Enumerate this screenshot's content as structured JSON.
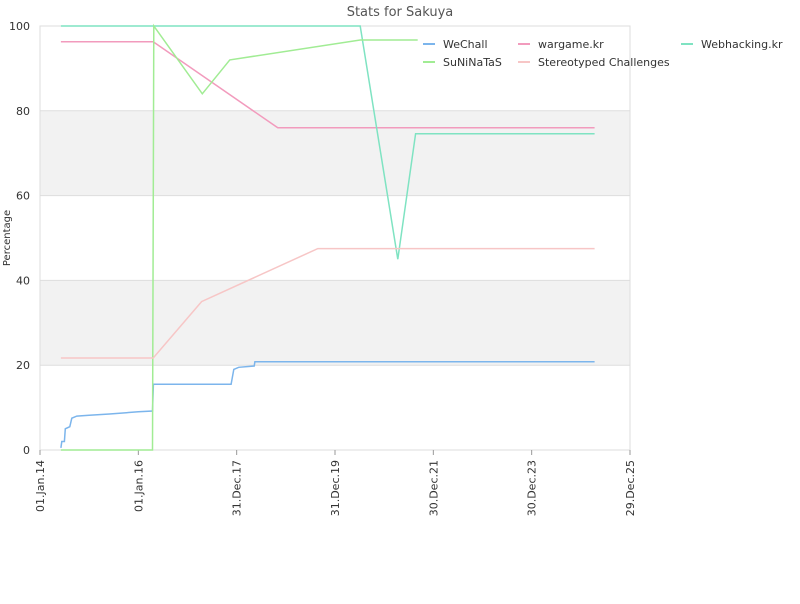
{
  "chart_data": {
    "type": "line",
    "title": "Stats for Sakuya",
    "y_label": "Percentage",
    "xlim": [
      "2014-01-01",
      "2025-12-29"
    ],
    "xticks": [
      {
        "value": "2014-01-01",
        "label": "01.Jan.14"
      },
      {
        "value": "2016-01-01",
        "label": "01.Jan.16"
      },
      {
        "value": "2017-12-31",
        "label": "31.Dec.17"
      },
      {
        "value": "2019-12-31",
        "label": "31.Dec.19"
      },
      {
        "value": "2021-12-30",
        "label": "30.Dec.21"
      },
      {
        "value": "2023-12-30",
        "label": "30.Dec.23"
      },
      {
        "value": "2025-12-29",
        "label": "29.Dec.25"
      }
    ],
    "ylim": [
      0,
      100
    ],
    "yticks": [
      0,
      20,
      40,
      60,
      80,
      100
    ],
    "grid": true,
    "legend": "top-right",
    "series": [
      {
        "name": "WeChall",
        "color": "#7cb5ec",
        "x": [
          "2014-06-05",
          "2014-06-12",
          "2014-07-01",
          "2014-07-08",
          "2014-08-10",
          "2014-08-25",
          "2014-10-01",
          "2015-01-01",
          "2015-06-01",
          "2016-01-01",
          "2016-04-15",
          "2016-04-22",
          "2017-11-20",
          "2017-12-10",
          "2018-01-15",
          "2018-05-10",
          "2018-05-15",
          "2025-04-10"
        ],
        "values": [
          0.5,
          2,
          2,
          5,
          5.5,
          7.5,
          8,
          8.2,
          8.5,
          9,
          9.2,
          15.5,
          15.5,
          19,
          19.5,
          19.8,
          20.8,
          20.8
        ]
      },
      {
        "name": "wargame.kr",
        "color": "#f29bbd",
        "x": [
          "2014-06-05",
          "2016-04-20",
          "2018-11-01",
          "2025-04-10"
        ],
        "values": [
          96.3,
          96.3,
          76,
          76
        ]
      },
      {
        "name": "Webhacking.kr",
        "color": "#7fe3c2",
        "x": [
          "2014-06-05",
          "2020-07-05",
          "2021-04-10",
          "2021-08-20",
          "2025-04-10"
        ],
        "values": [
          100,
          100,
          45,
          74.6,
          74.6
        ]
      },
      {
        "name": "SuNiNaTaS",
        "color": "#a1ec94",
        "x": [
          "2014-06-05",
          "2016-04-15",
          "2016-04-25",
          "2017-04-20",
          "2017-11-10",
          "2020-07-05",
          "2021-09-05"
        ],
        "values": [
          0,
          0,
          100,
          84,
          92,
          96.7,
          96.7
        ]
      },
      {
        "name": "Stereotyped Challenges",
        "color": "#f7c6c6",
        "x": [
          "2014-06-05",
          "2016-04-20",
          "2017-04-15",
          "2019-08-25",
          "2025-04-10"
        ],
        "values": [
          21.7,
          21.7,
          35,
          47.5,
          47.5
        ]
      }
    ]
  }
}
